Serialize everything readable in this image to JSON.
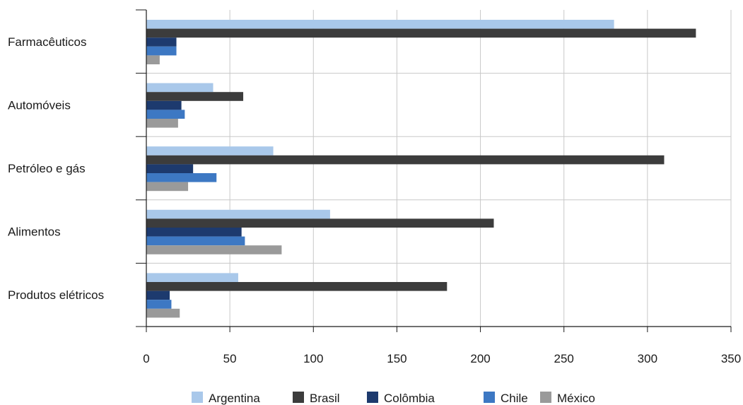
{
  "chart_data": {
    "type": "bar",
    "orientation": "horizontal",
    "title": "",
    "xlabel": "",
    "ylabel": "",
    "xlim": [
      0,
      350
    ],
    "xticks": [
      0,
      50,
      100,
      150,
      200,
      250,
      300,
      350
    ],
    "grid": "vertical",
    "legend_position": "bottom",
    "categories": [
      "Farmacêuticos",
      "Automóveis",
      "Petróleo e gás",
      "Alimentos",
      "Produtos elétricos"
    ],
    "series": [
      {
        "name": "Argentina",
        "color": "#a9c8ea",
        "values": [
          280,
          40,
          76,
          110,
          55
        ]
      },
      {
        "name": "Brasil",
        "color": "#3c3c3c",
        "values": [
          329,
          58,
          310,
          208,
          180
        ]
      },
      {
        "name": "Colômbia",
        "color": "#1d3a6e",
        "values": [
          18,
          21,
          28,
          57,
          14
        ]
      },
      {
        "name": "Chile",
        "color": "#3d78c3",
        "values": [
          18,
          23,
          42,
          59,
          15
        ]
      },
      {
        "name": "México",
        "color": "#9a9a9a",
        "values": [
          8,
          19,
          25,
          81,
          20
        ]
      }
    ]
  }
}
